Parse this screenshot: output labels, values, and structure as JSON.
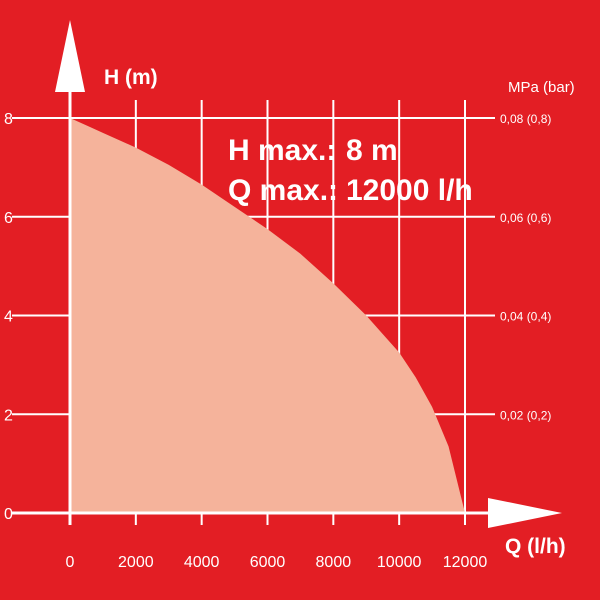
{
  "chart_data": {
    "type": "area",
    "title": "",
    "xlabel": "Q (l/h)",
    "ylabel": "H (m)",
    "y2label": "MPa (bar)",
    "xlim": [
      0,
      12000
    ],
    "ylim": [
      0,
      8
    ],
    "grid": true,
    "x_ticks": [
      "0",
      "2000",
      "4000",
      "6000",
      "8000",
      "10000",
      "12000"
    ],
    "y_ticks": [
      "0",
      "2",
      "4",
      "6",
      "8"
    ],
    "y2_ticks": [
      "0,02 (0,2)",
      "0,04 (0,4)",
      "0,06 (0,6)",
      "0,08 (0,8)"
    ],
    "annotations": [
      "H max.:",
      "8 m",
      "Q max.:",
      "12000 l/h"
    ],
    "series": [
      {
        "x": [
          0,
          1000,
          2000,
          3000,
          4000,
          5000,
          6000,
          7000,
          8000,
          9000,
          10000,
          10500,
          11000,
          11500,
          12000
        ],
        "y": [
          8,
          7.7,
          7.4,
          7.05,
          6.65,
          6.2,
          5.75,
          5.25,
          4.65,
          4.0,
          3.25,
          2.75,
          2.15,
          1.35,
          0
        ],
        "color": "#f5b39b"
      }
    ]
  },
  "colors": {
    "background": "#e31e24",
    "fill": "#f5b39b",
    "grid": "#ffffff",
    "text": "#ffffff"
  }
}
